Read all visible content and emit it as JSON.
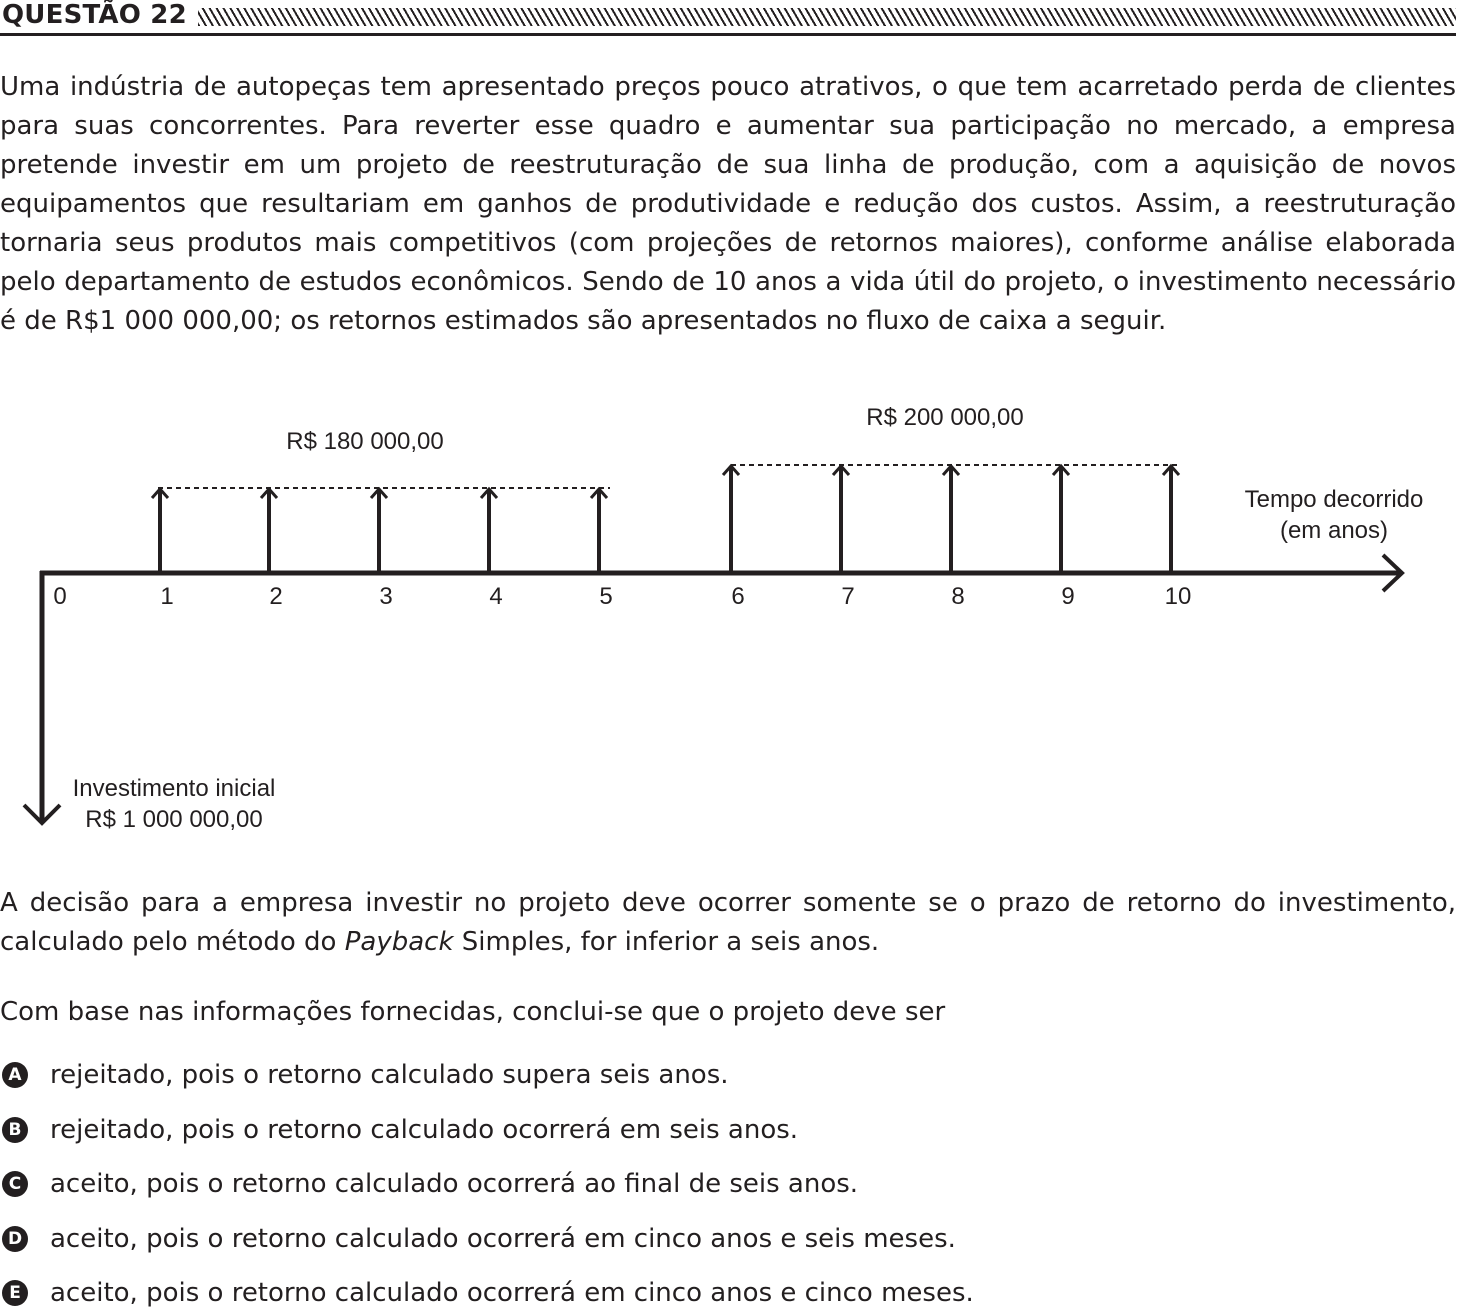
{
  "question": {
    "title": "QUESTÃO 22",
    "paragraph1": "Uma indústria de autopeças tem apresentado preços pouco atrativos, o que tem acarretado perda de clientes para suas concorrentes. Para reverter esse quadro e aumentar sua participação no mercado, a empresa pretende investir em um projeto de reestruturação de sua linha de produção, com a aquisição de novos equipamentos que resultariam em ganhos de produtividade e redução dos custos. Assim, a reestruturação tornaria seus produtos mais competitivos (com projeções de retornos maiores), conforme análise elaborada pelo departamento de estudos econômicos. Sendo de 10 anos a vida útil do projeto, o investimento necessário é de R$1 000 000,00; os retornos estimados são apresentados no fluxo de caixa a seguir.",
    "paragraph2_before": "A decisão para a empresa investir no projeto deve ocorrer somente se o prazo de retorno do investimento, calculado pelo método do ",
    "paragraph2_italic": "Payback",
    "paragraph2_after": " Simples, for inferior a seis anos.",
    "paragraph3": "Com base nas informações fornecidas, conclui-se que o projeto deve ser",
    "options": [
      {
        "letter": "A",
        "text": "rejeitado, pois o retorno calculado supera seis anos."
      },
      {
        "letter": "B",
        "text": "rejeitado, pois o retorno calculado ocorrerá em seis anos."
      },
      {
        "letter": "C",
        "text": "aceito, pois o retorno calculado ocorrerá ao final de seis anos."
      },
      {
        "letter": "D",
        "text": "aceito, pois o retorno calculado ocorrerá em cinco anos e seis meses."
      },
      {
        "letter": "E",
        "text": "aceito, pois o retorno calculado ocorrerá em cinco anos e cinco meses."
      }
    ]
  },
  "cash_flow_diagram": {
    "periods": [
      "0",
      "1",
      "2",
      "3",
      "4",
      "5",
      "6",
      "7",
      "8",
      "9",
      "10"
    ],
    "label_group1": "R$ 180 000,00",
    "label_group2": "R$ 200 000,00",
    "axis_label_line1": "Tempo decorrido",
    "axis_label_line2": "(em anos)",
    "investment_label_line1": "Investimento inicial",
    "investment_label_line2": "R$ 1 000 000,00",
    "inflows": [
      {
        "year": 1,
        "value": 180000
      },
      {
        "year": 2,
        "value": 180000
      },
      {
        "year": 3,
        "value": 180000
      },
      {
        "year": 4,
        "value": 180000
      },
      {
        "year": 5,
        "value": 180000
      },
      {
        "year": 6,
        "value": 200000
      },
      {
        "year": 7,
        "value": 200000
      },
      {
        "year": 8,
        "value": 200000
      },
      {
        "year": 9,
        "value": 200000
      },
      {
        "year": 10,
        "value": 200000
      }
    ],
    "outflows": [
      {
        "year": 0,
        "value": 1000000
      }
    ]
  }
}
